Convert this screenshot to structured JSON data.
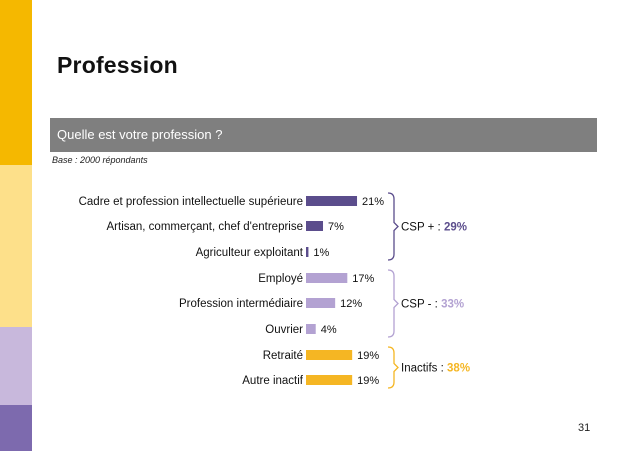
{
  "slide": {
    "title": "Profession",
    "question": "Quelle est votre profession ?",
    "base": "Base : 2000 répondants",
    "page_number": "31"
  },
  "colors": {
    "csp_plus": "#5b4d8c",
    "csp_minus": "#b3a2d2",
    "inactifs": "#f5b623"
  },
  "chart_data": {
    "type": "bar",
    "orientation": "horizontal",
    "categories": [
      "Cadre et profession intellectuelle supérieure",
      "Artisan, commerçant, chef d'entreprise",
      "Agriculteur exploitant",
      "Employé",
      "Profession intermédiaire",
      "Ouvrier",
      "Retraité",
      "Autre inactif"
    ],
    "values": [
      21,
      7,
      1,
      17,
      12,
      4,
      19,
      19
    ],
    "value_labels": [
      "21%",
      "7%",
      "1%",
      "17%",
      "12%",
      "4%",
      "19%",
      "19%"
    ],
    "unit": "%",
    "groups": [
      {
        "label": "CSP + : ",
        "total": "29%",
        "color": "#5b4d8c",
        "from": 0,
        "to": 2
      },
      {
        "label": "CSP - : ",
        "total": "33%",
        "color": "#b3a2d2",
        "from": 3,
        "to": 5
      },
      {
        "label": "Inactifs : ",
        "total": "38%",
        "color": "#f5b623",
        "from": 6,
        "to": 7
      }
    ]
  }
}
